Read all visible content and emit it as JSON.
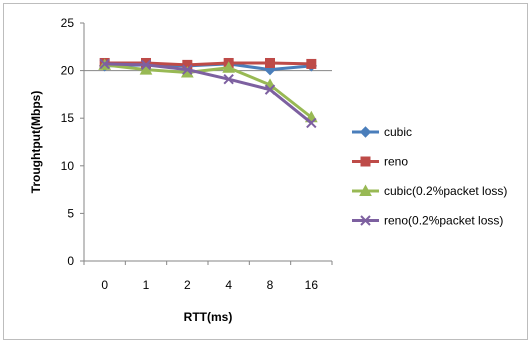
{
  "chart_data": {
    "type": "line",
    "categories": [
      "0",
      "1",
      "2",
      "4",
      "8",
      "16"
    ],
    "xlabel": "RTT(ms)",
    "ylabel": "Troughtput(Mbps)",
    "ylim": [
      0,
      25
    ],
    "yticks": [
      0,
      5,
      10,
      15,
      20,
      25
    ],
    "grid": "horizontal major gridline at 20 only",
    "legend_position": "right",
    "series": [
      {
        "name": "cubic",
        "values": [
          20.5,
          20.6,
          20.5,
          20.7,
          20.1,
          20.5
        ],
        "color": "#4a7ebb",
        "marker": "diamond"
      },
      {
        "name": "reno",
        "values": [
          20.8,
          20.8,
          20.6,
          20.8,
          20.8,
          20.7
        ],
        "color": "#be4b48",
        "marker": "square"
      },
      {
        "name": "cubic(0.2%packet loss)",
        "values": [
          20.6,
          20.1,
          19.8,
          20.3,
          18.5,
          15.1
        ],
        "color": "#98b954",
        "marker": "triangle"
      },
      {
        "name": "reno(0.2%packet loss)",
        "values": [
          20.7,
          20.6,
          20.1,
          19.1,
          18.0,
          14.5
        ],
        "color": "#7d60a0",
        "marker": "x"
      }
    ]
  }
}
